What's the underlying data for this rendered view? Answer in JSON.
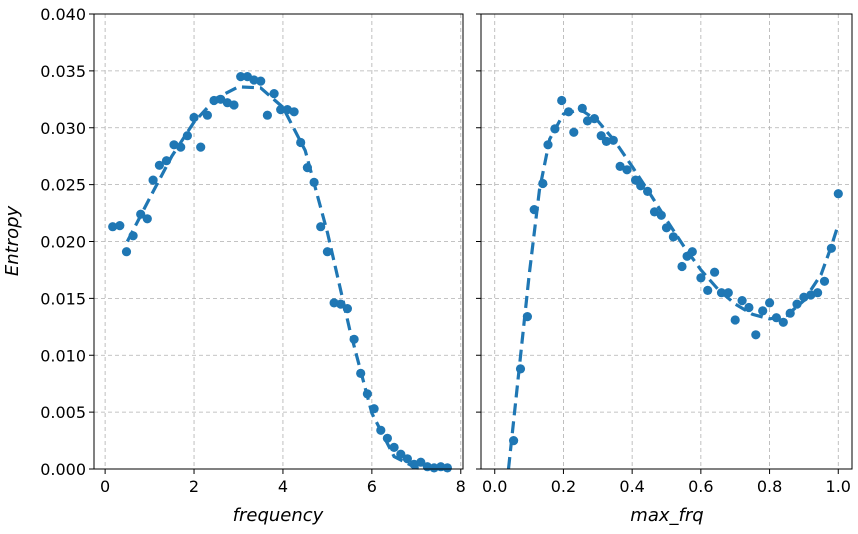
{
  "chart_data": [
    {
      "type": "scatter",
      "xlabel": "frequency",
      "ylabel": "Entropy",
      "xlim": [
        -0.25,
        8.05
      ],
      "ylim": [
        0,
        0.04
      ],
      "xticks": [
        "0",
        "2",
        "4",
        "6",
        "8"
      ],
      "xtick_values": [
        0,
        2,
        4,
        6,
        8
      ],
      "yticks": [
        "0.000",
        "0.005",
        "0.010",
        "0.015",
        "0.020",
        "0.025",
        "0.030",
        "0.035",
        "0.040"
      ],
      "ytick_values": [
        0,
        0.005,
        0.01,
        0.015,
        0.02,
        0.025,
        0.03,
        0.035,
        0.04
      ],
      "grid": true,
      "color": "#1f77b4",
      "series": [
        {
          "kind": "scatter",
          "x": [
            0.17,
            0.33,
            0.48,
            0.63,
            0.8,
            0.95,
            1.08,
            1.22,
            1.38,
            1.55,
            1.7,
            1.85,
            2.0,
            2.15,
            2.3,
            2.45,
            2.6,
            2.75,
            2.9,
            3.05,
            3.2,
            3.35,
            3.5,
            3.65,
            3.8,
            3.95,
            4.1,
            4.25,
            4.4,
            4.55,
            4.7,
            4.85,
            5.0,
            5.15,
            5.3,
            5.45,
            5.6,
            5.75,
            5.9,
            6.05,
            6.2,
            6.35,
            6.5,
            6.65,
            6.8,
            6.95,
            7.1,
            7.25,
            7.4,
            7.55,
            7.7
          ],
          "y": [
            0.0213,
            0.0214,
            0.0191,
            0.0205,
            0.0224,
            0.022,
            0.0254,
            0.0267,
            0.0271,
            0.0285,
            0.0283,
            0.0293,
            0.0309,
            0.0283,
            0.0311,
            0.0324,
            0.0325,
            0.0322,
            0.032,
            0.0345,
            0.0345,
            0.0342,
            0.0341,
            0.0311,
            0.033,
            0.0316,
            0.0316,
            0.0314,
            0.0287,
            0.0265,
            0.0252,
            0.0213,
            0.0191,
            0.0146,
            0.0145,
            0.0141,
            0.0114,
            0.0084,
            0.0066,
            0.0053,
            0.0034,
            0.0027,
            0.0019,
            0.0013,
            0.0009,
            0.0004,
            0.0006,
            0.0002,
            0.0001,
            0.0002,
            0.0001
          ]
        },
        {
          "kind": "dashed-fit",
          "x": [
            0.5,
            1.0,
            1.5,
            2.0,
            2.5,
            3.0,
            3.5,
            4.0,
            4.5,
            5.0,
            5.5,
            6.0,
            6.5,
            7.0,
            7.5,
            7.7
          ],
          "y": [
            0.02,
            0.0238,
            0.0275,
            0.0305,
            0.0326,
            0.0336,
            0.0335,
            0.0318,
            0.028,
            0.0208,
            0.0123,
            0.0049,
            0.0011,
            0.0001,
            0.0,
            0.0
          ]
        }
      ]
    },
    {
      "type": "scatter",
      "xlabel": "max_frq",
      "ylabel": "",
      "xlim": [
        -0.04,
        1.04
      ],
      "ylim": [
        0,
        0.04
      ],
      "xticks": [
        "0.0",
        "0.2",
        "0.4",
        "0.6",
        "0.8",
        "1.0"
      ],
      "xtick_values": [
        0,
        0.2,
        0.4,
        0.6,
        0.8,
        1.0
      ],
      "yticks": [],
      "ytick_values": [
        0,
        0.005,
        0.01,
        0.015,
        0.02,
        0.025,
        0.03,
        0.035,
        0.04
      ],
      "grid": true,
      "color": "#1f77b4",
      "series": [
        {
          "kind": "scatter",
          "x": [
            0.055,
            0.075,
            0.095,
            0.115,
            0.14,
            0.155,
            0.175,
            0.195,
            0.215,
            0.23,
            0.255,
            0.27,
            0.29,
            0.31,
            0.325,
            0.345,
            0.365,
            0.385,
            0.41,
            0.425,
            0.445,
            0.465,
            0.485,
            0.5,
            0.52,
            0.545,
            0.56,
            0.575,
            0.6,
            0.62,
            0.64,
            0.66,
            0.68,
            0.7,
            0.72,
            0.74,
            0.76,
            0.78,
            0.8,
            0.82,
            0.84,
            0.86,
            0.88,
            0.9,
            0.92,
            0.94,
            0.96,
            0.98,
            1.0
          ],
          "y": [
            0.0025,
            0.0088,
            0.0134,
            0.0228,
            0.0251,
            0.0285,
            0.0299,
            0.0324,
            0.0314,
            0.0296,
            0.0317,
            0.0306,
            0.0308,
            0.0293,
            0.0288,
            0.0289,
            0.0266,
            0.0263,
            0.0254,
            0.0249,
            0.0244,
            0.0226,
            0.0223,
            0.0212,
            0.0204,
            0.0178,
            0.0187,
            0.0191,
            0.0168,
            0.0157,
            0.0173,
            0.0155,
            0.0155,
            0.0131,
            0.0148,
            0.0142,
            0.0118,
            0.0139,
            0.0146,
            0.0133,
            0.0129,
            0.0137,
            0.0145,
            0.0151,
            0.0153,
            0.0155,
            0.0165,
            0.0194,
            0.0242
          ]
        },
        {
          "kind": "dashed-fit",
          "x": [
            0.04,
            0.07,
            0.1,
            0.13,
            0.16,
            0.2,
            0.25,
            0.3,
            0.35,
            0.4,
            0.45,
            0.5,
            0.55,
            0.6,
            0.65,
            0.7,
            0.75,
            0.8,
            0.85,
            0.9,
            0.95,
            0.98,
            1.0
          ],
          "y": [
            0.0,
            0.0085,
            0.017,
            0.0245,
            0.029,
            0.0312,
            0.0316,
            0.0306,
            0.0288,
            0.0266,
            0.0243,
            0.0219,
            0.0196,
            0.0175,
            0.0158,
            0.0145,
            0.0136,
            0.0132,
            0.0135,
            0.0148,
            0.0171,
            0.0196,
            0.0215
          ]
        }
      ]
    }
  ]
}
